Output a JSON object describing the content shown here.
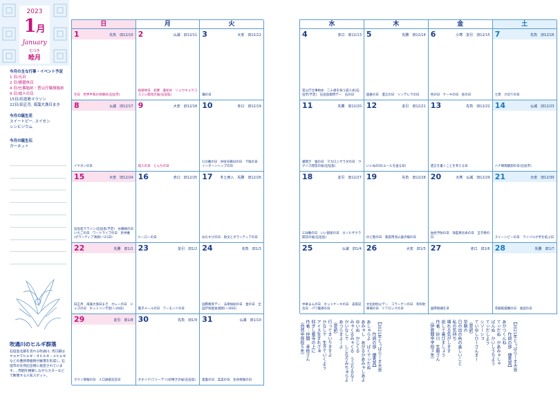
{
  "header": {
    "year": "2023",
    "month_num": "1",
    "month_kanji": "月",
    "month_en": "January",
    "old_name_ruby": "むつき",
    "old_name": "睦月"
  },
  "sidebar": {
    "events_title": "今月の主な行事・イベント予定",
    "events": [
      {
        "text": "1 日/元日",
        "red": true
      },
      {
        "text": "2 日/振替休日",
        "red": true
      },
      {
        "text": "4 日/仕事始め・官公庁御用始め",
        "red": true
      },
      {
        "text": "9 日/成人の日",
        "red": true
      },
      {
        "text": "15日/石垣島マラソン",
        "red": false
      },
      {
        "text": "22日/旧正月, 海藻大漁日まき",
        "red": false
      }
    ],
    "flower_title": "今月の誕生花",
    "flowers": [
      "スイートピー, スイセン",
      "シンビジウム"
    ],
    "stone_title": "今月の誕生石",
    "stones": [
      "ガーネット"
    ],
    "caption_title": "吹通川のヒルギ群落",
    "caption_text": "石垣島北部を流れる吹通川, 河口部はヤエヤマヒルギ・オヒルギ・メヒルギなどの亜熱帯植物が群落を形成し, 石垣市の天然記念物に指定されています。, 周囲を観察しながらカヌーなどで散策する人気スポット。"
  },
  "calendar": {
    "dow_left": [
      "日",
      "月",
      "火"
    ],
    "dow_right": [
      "水",
      "木",
      "金",
      "土"
    ],
    "weeks": [
      [
        {
          "d": "1",
          "meta": "先負　旧12/10",
          "ev": "元日　世界平和の祈願日(石垣市)",
          "red": true,
          "hol": true
        },
        {
          "d": "2",
          "meta": "仏滅　旧12/11",
          "ev": "振替休日　初夢　書初め　リュウキュウコスミレ開花の候(石垣島)",
          "red": true,
          "hol": true
        },
        {
          "d": "3",
          "meta": "大安　旧12/12",
          "ev": "瞳の日",
          "red": false,
          "hol": false
        },
        {
          "d": "4",
          "meta": "赤口　旧12/13",
          "ev": "官公庁仕事始め　二十歳を祝う成人式(石垣市/予定)　石垣島御用デー　石の日",
          "red": false,
          "hol": false
        },
        {
          "d": "5",
          "meta": "先勝　旧12/14",
          "ev": "囲碁の日　遺言の日　シンデレラの日",
          "red": false,
          "hol": false
        },
        {
          "d": "6",
          "meta": "小寒　友引　旧12/15",
          "ev": "色の日　ケーキの日　佐の日",
          "red": false,
          "hol": false
        },
        {
          "d": "7",
          "meta": "先負　旧12/16",
          "ev": "七草　爪切りの日",
          "red": false,
          "hol": false
        }
      ],
      [
        {
          "d": "8",
          "meta": "仏滅　旧12/17",
          "ev": "イヤホンの日",
          "red": false,
          "hol": false
        },
        {
          "d": "9",
          "meta": "大安　旧12/18",
          "ev": "成人の日　とんちの日",
          "red": true,
          "hol": true
        },
        {
          "d": "10",
          "meta": "赤口　旧12/19",
          "ev": "110番の日　弁財天縁日の日　下駄の日　インターンシップの日",
          "red": false,
          "hol": false
        },
        {
          "d": "11",
          "meta": "先勝　旧12/20",
          "ev": "鏡開き　塩の日　マカロニサラダの日　ウグイス開花の候(石垣島)",
          "red": false,
          "hol": false
        },
        {
          "d": "12",
          "meta": "友引　旧12/21",
          "ev": "いいねの日(エールを送る日)",
          "red": false,
          "hol": false
        },
        {
          "d": "13",
          "meta": "先負　旧12/22",
          "ev": "遺言を書くことを考える日",
          "red": false,
          "hol": false
        },
        {
          "d": "14",
          "meta": "仏滅　旧12/23",
          "ev": "ハナ晴雨観測の日(石垣市)",
          "red": false,
          "hol": false
        }
      ],
      [
        {
          "d": "15",
          "meta": "大安　旧12/24",
          "ev": "石垣島マラソン(石垣島/予定)　お嬢様の日　いちごの日　ワードライブの日　針供養(ボランティア清掃(～21日)",
          "red": false,
          "hol": false
        },
        {
          "d": "16",
          "meta": "赤口　旧12/25",
          "ev": "ヒーローの日",
          "red": false,
          "hol": false
        },
        {
          "d": "17",
          "meta": "冬土用入　先勝　旧12/26",
          "ev": "おむすびの日　防災とボランティアの日",
          "red": false,
          "hol": false
        },
        {
          "d": "18",
          "meta": "友引　旧12/27",
          "ev": "118番の日　いい部屋の日　カンヒザクラ開花の候(石垣島)",
          "red": false,
          "hol": false
        },
        {
          "d": "19",
          "meta": "先負　旧12/28",
          "ev": "のど飴の日　家庭用消火器点検の日",
          "red": false,
          "hol": false
        },
        {
          "d": "20",
          "meta": "大寒　仏滅　旧12/29",
          "ev": "血栓予防の日　海苔恵比寿の日　玉子焼の日",
          "red": false,
          "hol": false
        },
        {
          "d": "21",
          "meta": "大安　旧12/30",
          "ev": "スイートピーの日　ライバルが手を結ぶ日",
          "red": false,
          "hol": false
        }
      ],
      [
        {
          "d": "22",
          "meta": "先勝　旧1/1",
          "ev": "旧正月　海藻大漁日まき　カレーの日　ジャズの日　ホットリン学習(～28日)",
          "red": false,
          "hol": false
        },
        {
          "d": "23",
          "meta": "友引　旧1/2",
          "ev": "電子メールの日　アーモンドの日",
          "red": false,
          "hol": false
        },
        {
          "d": "24",
          "meta": "先負　旧1/3",
          "ev": "国際教育デー　法律扶助の日　金の日　全国学校給食週間(～30日)",
          "red": false,
          "hol": false
        },
        {
          "d": "25",
          "meta": "仏滅　旧1/4",
          "ev": "中華まんの日　ホットケーキの日　美容記念日　パワ最適の日",
          "red": false,
          "hol": false
        },
        {
          "d": "26",
          "meta": "大安　旧1/5",
          "ev": "文化財防火デー　コラーゲンの日　有料駐車場の日　ドアロックの日",
          "red": false,
          "hol": false
        },
        {
          "d": "27",
          "meta": "赤口　旧1/6",
          "ev": "国際刺繍を日",
          "red": false,
          "hol": false
        },
        {
          "d": "28",
          "meta": "先勝　旧1/7",
          "ev": "衣服乾燥機の日　逸話の日",
          "red": false,
          "hol": false
        }
      ],
      [
        {
          "d": "29",
          "meta": "友引　旧1/8",
          "ev": "タウン情報の日　人口調査記念日",
          "red": false,
          "hol": false
        },
        {
          "d": "30",
          "meta": "先負　旧1/9",
          "ev": "オオイナ(ファーデリ)初鳴きの候(石垣島)",
          "red": false,
          "hol": false
        },
        {
          "d": "31",
          "meta": "仏滅　旧1/10",
          "ev": "愛妻の日　菜菜の日　生命保険の日",
          "red": false,
          "hol": false
        }
      ]
    ]
  },
  "poems": {
    "a": "【2021年とぅばらーま大会\n　　　作詞の部　優秀賞】\nあしゃらよ　ばくでぃたぬ\nあみゃし　あがるかあみゃしあよ\nゆいぬ　かじくる\nみゃくるみゃくる　うぶりるなー\nかいなしで　しじなりみちゅらよ\nあつらまよーよ\n（意訳）\n行ってまいりますよ\nかなしで　生きていくよう\nアイス生まれさぁ\n仰ぎし鷲寺の上に\n作者：仲間　孝枝さん\n（自然中部校５年）",
    "b": "【2021年とぅばらーま大会\n　　　作詞の部　優秀賞】\nあかつくんね\nてぃだぬ　かあみゃしゃ\nばんぬ　かいしうちよう\nてぃだしよう\nシゾーショ\nていゆしひーさんまー\n（意訳）\n早朝の\n日の出の色の美しいこと\n私の気持ち\n晴れる気がします\n祝して喜びましょう\n作者：砂川　生剛さん\n（伊原間中学校３年）"
  }
}
